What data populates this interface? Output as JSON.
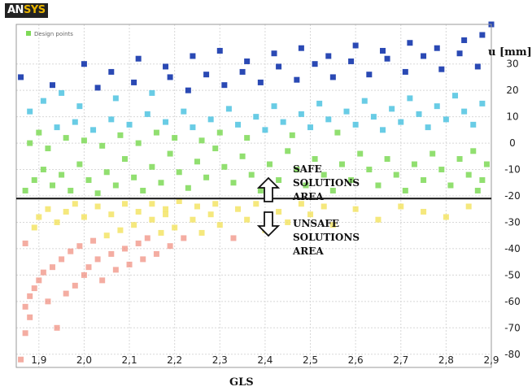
{
  "logo": {
    "prefix": "AN",
    "suffix": "SYS"
  },
  "chart_data": {
    "type": "scatter",
    "title": "",
    "xlabel": "GLS",
    "ylabel": "u [mm]",
    "xlim": [
      1.85,
      2.9
    ],
    "ylim": [
      -85,
      45
    ],
    "x_ticks": [
      "1,9",
      "2,0",
      "2,1",
      "2,2",
      "2,3",
      "2,4",
      "2,5",
      "2,6",
      "2,7",
      "2,8",
      "2,9"
    ],
    "x_tick_values": [
      1.9,
      2.0,
      2.1,
      2.2,
      2.3,
      2.4,
      2.5,
      2.6,
      2.7,
      2.8,
      2.9
    ],
    "y_ticks": [
      30,
      20,
      10,
      0,
      -10,
      -20,
      -30,
      -40,
      -50,
      -60,
      -70,
      -80
    ],
    "legend": {
      "label": "Design points",
      "position": "top-left"
    },
    "threshold": {
      "value": -21
    },
    "annotations": [
      {
        "lines": [
          "SAFE",
          "SOLUTIONS",
          "AREA"
        ],
        "arrow": "up"
      },
      {
        "lines": [
          "UNSAFE",
          "SOLUTIONS",
          "AREA"
        ],
        "arrow": "down"
      }
    ],
    "colors": {
      "high": "#1f3fb0",
      "mid_high": "#4fc3e0",
      "mid": "#7ed957",
      "mid_low": "#f2e25c",
      "low": "#f08a7a"
    },
    "series": [
      {
        "points": [
          [
            1.86,
            -82
          ],
          [
            1.87,
            -72
          ],
          [
            1.88,
            -66
          ],
          [
            1.87,
            -62
          ],
          [
            1.88,
            -58
          ],
          [
            1.89,
            -55
          ],
          [
            1.9,
            -52
          ],
          [
            1.91,
            -49
          ],
          [
            1.92,
            -60
          ],
          [
            1.93,
            -47
          ],
          [
            1.94,
            -70
          ],
          [
            1.95,
            -44
          ],
          [
            1.96,
            -57
          ],
          [
            1.97,
            -41
          ],
          [
            1.98,
            -54
          ],
          [
            1.99,
            -39
          ],
          [
            2.0,
            -50
          ],
          [
            2.01,
            -47
          ],
          [
            2.02,
            -37
          ],
          [
            2.03,
            -44
          ],
          [
            2.04,
            -52
          ],
          [
            2.05,
            -35
          ],
          [
            2.06,
            -42
          ],
          [
            2.07,
            -48
          ],
          [
            2.08,
            -33
          ],
          [
            2.09,
            -40
          ],
          [
            2.1,
            -46
          ],
          [
            2.11,
            -31
          ],
          [
            2.12,
            -38
          ],
          [
            2.13,
            -44
          ],
          [
            2.14,
            -36
          ],
          [
            2.15,
            -29
          ],
          [
            2.16,
            -42
          ],
          [
            2.17,
            -34
          ],
          [
            2.18,
            -27
          ],
          [
            2.19,
            -39
          ],
          [
            2.2,
            -32
          ],
          [
            2.22,
            -36
          ],
          [
            2.24,
            -29
          ],
          [
            2.26,
            -34
          ],
          [
            2.28,
            -27
          ],
          [
            2.3,
            -31
          ],
          [
            2.33,
            -36
          ],
          [
            2.36,
            -29
          ],
          [
            2.4,
            -33
          ],
          [
            2.45,
            -30
          ],
          [
            2.5,
            -27
          ],
          [
            2.55,
            -31
          ],
          [
            2.65,
            -29
          ],
          [
            2.8,
            -28
          ],
          [
            1.87,
            -38
          ],
          [
            1.89,
            -32
          ],
          [
            1.9,
            -28
          ],
          [
            1.92,
            -25
          ],
          [
            1.94,
            -30
          ],
          [
            1.96,
            -26
          ],
          [
            1.98,
            -23
          ],
          [
            2.0,
            -28
          ],
          [
            2.03,
            -24
          ],
          [
            2.06,
            -27
          ],
          [
            2.09,
            -23
          ],
          [
            2.12,
            -26
          ],
          [
            2.15,
            -23
          ],
          [
            2.18,
            -25
          ],
          [
            2.21,
            -22
          ],
          [
            2.25,
            -24
          ],
          [
            2.29,
            -23
          ],
          [
            2.34,
            -25
          ],
          [
            2.38,
            -23
          ],
          [
            2.43,
            -26
          ],
          [
            2.48,
            -23
          ],
          [
            2.53,
            -24
          ],
          [
            2.6,
            -25
          ],
          [
            2.7,
            -24
          ],
          [
            2.75,
            -26
          ],
          [
            2.85,
            -24
          ],
          [
            1.87,
            -18
          ],
          [
            1.89,
            -14
          ],
          [
            1.91,
            -10
          ],
          [
            1.93,
            -16
          ],
          [
            1.95,
            -12
          ],
          [
            1.97,
            -18
          ],
          [
            1.99,
            -8
          ],
          [
            2.01,
            -14
          ],
          [
            2.03,
            -19
          ],
          [
            2.05,
            -11
          ],
          [
            2.07,
            -16
          ],
          [
            2.09,
            -6
          ],
          [
            2.11,
            -13
          ],
          [
            2.13,
            -18
          ],
          [
            2.15,
            -9
          ],
          [
            2.17,
            -15
          ],
          [
            2.19,
            -4
          ],
          [
            2.21,
            -11
          ],
          [
            2.23,
            -17
          ],
          [
            2.25,
            -7
          ],
          [
            2.27,
            -13
          ],
          [
            2.29,
            -2
          ],
          [
            2.31,
            -9
          ],
          [
            2.33,
            -15
          ],
          [
            2.35,
            -5
          ],
          [
            2.37,
            -12
          ],
          [
            2.39,
            -18
          ],
          [
            2.41,
            -8
          ],
          [
            2.43,
            -14
          ],
          [
            2.45,
            -3
          ],
          [
            2.47,
            -10
          ],
          [
            2.49,
            -16
          ],
          [
            2.51,
            -6
          ],
          [
            2.53,
            -12
          ],
          [
            2.55,
            -18
          ],
          [
            2.57,
            -8
          ],
          [
            2.59,
            -14
          ],
          [
            2.61,
            -4
          ],
          [
            2.63,
            -10
          ],
          [
            2.65,
            -16
          ],
          [
            2.67,
            -6
          ],
          [
            2.69,
            -12
          ],
          [
            2.71,
            -18
          ],
          [
            2.73,
            -8
          ],
          [
            2.75,
            -14
          ],
          [
            2.77,
            -4
          ],
          [
            2.79,
            -10
          ],
          [
            2.81,
            -16
          ],
          [
            2.83,
            -6
          ],
          [
            2.85,
            -12
          ],
          [
            2.87,
            -18
          ],
          [
            2.89,
            -8
          ],
          [
            2.88,
            -14
          ],
          [
            2.86,
            -3
          ],
          [
            1.88,
            0
          ],
          [
            1.9,
            4
          ],
          [
            1.92,
            -2
          ],
          [
            1.94,
            6
          ],
          [
            1.96,
            2
          ],
          [
            1.98,
            8
          ],
          [
            2.0,
            1
          ],
          [
            2.02,
            5
          ],
          [
            2.04,
            -1
          ],
          [
            2.06,
            9
          ],
          [
            2.08,
            3
          ],
          [
            2.1,
            7
          ],
          [
            2.12,
            0
          ],
          [
            2.14,
            11
          ],
          [
            2.16,
            4
          ],
          [
            2.18,
            8
          ],
          [
            2.2,
            2
          ],
          [
            2.22,
            12
          ],
          [
            2.24,
            6
          ],
          [
            2.26,
            1
          ],
          [
            2.28,
            9
          ],
          [
            2.3,
            4
          ],
          [
            2.32,
            13
          ],
          [
            2.34,
            7
          ],
          [
            2.36,
            2
          ],
          [
            2.38,
            10
          ],
          [
            2.4,
            5
          ],
          [
            2.42,
            14
          ],
          [
            2.44,
            8
          ],
          [
            2.46,
            3
          ],
          [
            2.48,
            11
          ],
          [
            2.5,
            6
          ],
          [
            2.52,
            15
          ],
          [
            2.54,
            9
          ],
          [
            2.56,
            4
          ],
          [
            2.58,
            12
          ],
          [
            2.6,
            7
          ],
          [
            2.62,
            16
          ],
          [
            2.64,
            10
          ],
          [
            2.66,
            5
          ],
          [
            2.68,
            13
          ],
          [
            2.7,
            8
          ],
          [
            2.72,
            17
          ],
          [
            2.74,
            11
          ],
          [
            2.76,
            6
          ],
          [
            2.78,
            14
          ],
          [
            2.8,
            9
          ],
          [
            2.82,
            18
          ],
          [
            2.84,
            12
          ],
          [
            2.86,
            7
          ],
          [
            2.88,
            15
          ],
          [
            1.88,
            12
          ],
          [
            1.91,
            16
          ],
          [
            1.95,
            19
          ],
          [
            1.99,
            14
          ],
          [
            2.03,
            21
          ],
          [
            2.07,
            17
          ],
          [
            2.11,
            23
          ],
          [
            2.15,
            19
          ],
          [
            2.19,
            25
          ],
          [
            2.23,
            20
          ],
          [
            2.27,
            26
          ],
          [
            2.31,
            22
          ],
          [
            2.35,
            27
          ],
          [
            2.39,
            23
          ],
          [
            2.43,
            29
          ],
          [
            2.47,
            24
          ],
          [
            2.51,
            30
          ],
          [
            2.55,
            25
          ],
          [
            2.59,
            31
          ],
          [
            2.63,
            26
          ],
          [
            2.67,
            32
          ],
          [
            2.71,
            27
          ],
          [
            2.75,
            33
          ],
          [
            2.79,
            28
          ],
          [
            2.83,
            34
          ],
          [
            2.87,
            29
          ],
          [
            1.86,
            25
          ],
          [
            1.93,
            22
          ],
          [
            2.0,
            30
          ],
          [
            2.06,
            27
          ],
          [
            2.12,
            32
          ],
          [
            2.18,
            29
          ],
          [
            2.24,
            33
          ],
          [
            2.3,
            35
          ],
          [
            2.36,
            31
          ],
          [
            2.42,
            34
          ],
          [
            2.48,
            36
          ],
          [
            2.54,
            33
          ],
          [
            2.6,
            37
          ],
          [
            2.66,
            35
          ],
          [
            2.72,
            38
          ],
          [
            2.78,
            36
          ],
          [
            2.84,
            39
          ],
          [
            2.88,
            41
          ],
          [
            2.9,
            45
          ]
        ]
      }
    ]
  }
}
